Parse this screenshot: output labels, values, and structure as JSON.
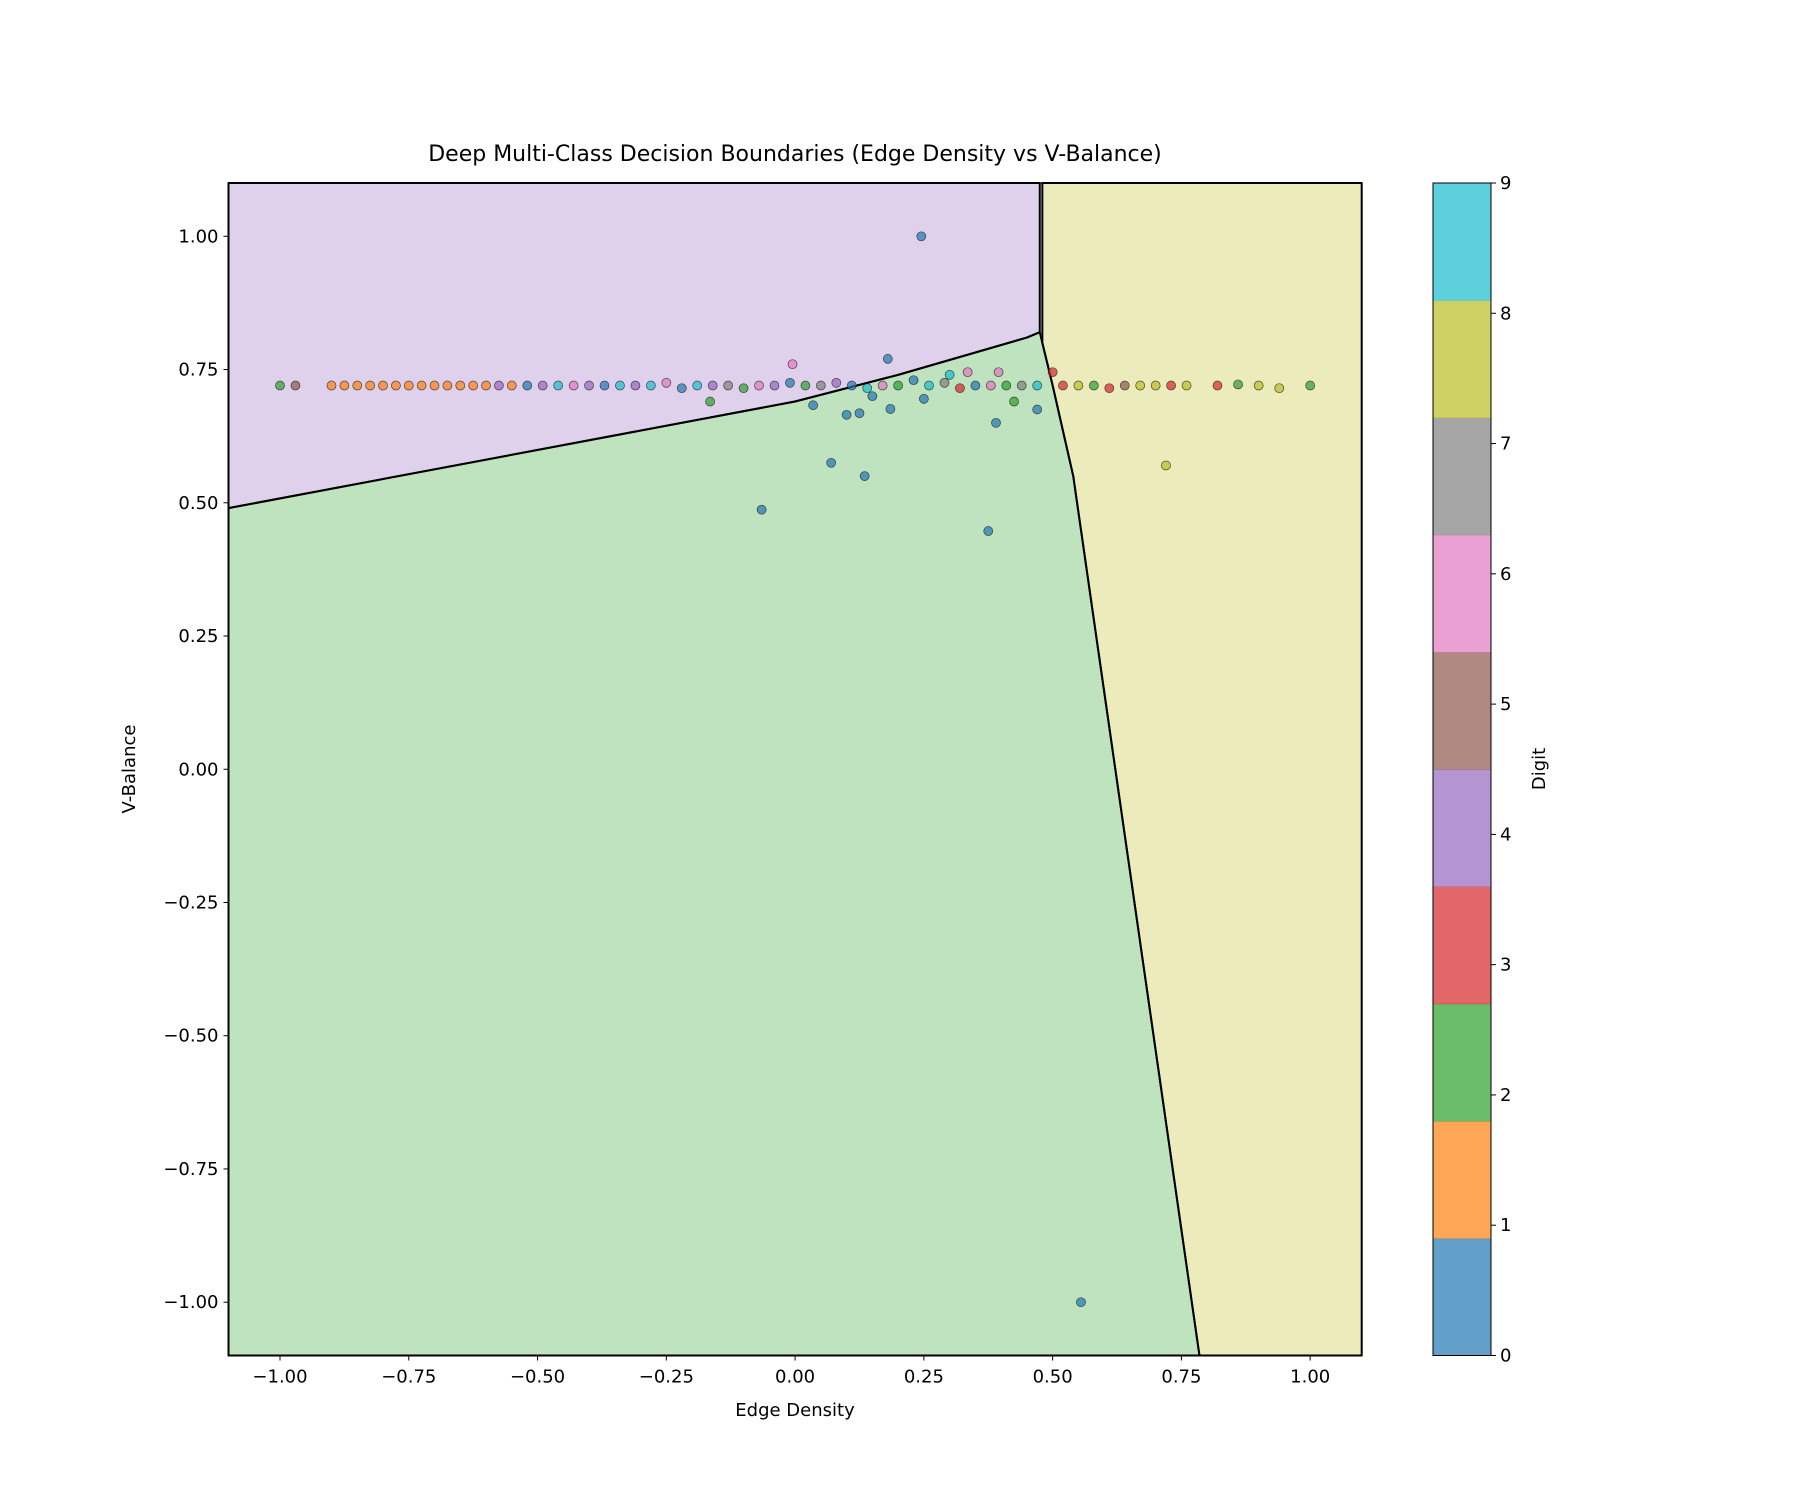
{
  "chart_data": {
    "type": "scatter",
    "title": "Deep Multi-Class Decision Boundaries (Edge Density vs V-Balance)",
    "x_label": "Edge Density",
    "y_label": "V-Balance",
    "colorbar_label": "Digit",
    "xlim": [
      -1.1,
      1.1
    ],
    "ylim": [
      -1.1,
      1.1
    ],
    "xticks": [
      {
        "value": -1,
        "label": "−1.00"
      },
      {
        "value": -0.75,
        "label": "−0.75"
      },
      {
        "value": -0.5,
        "label": "−0.50"
      },
      {
        "value": -0.25,
        "label": "−0.25"
      },
      {
        "value": 0,
        "label": "0.00"
      },
      {
        "value": 0.25,
        "label": "0.25"
      },
      {
        "value": 0.5,
        "label": "0.50"
      },
      {
        "value": 0.75,
        "label": "0.75"
      },
      {
        "value": 1,
        "label": "1.00"
      }
    ],
    "yticks": [
      {
        "value": -1,
        "label": "−1.00"
      },
      {
        "value": -0.75,
        "label": "−0.75"
      },
      {
        "value": -0.5,
        "label": "−0.50"
      },
      {
        "value": -0.25,
        "label": "−0.25"
      },
      {
        "value": 0,
        "label": "0.00"
      },
      {
        "value": 0.25,
        "label": "0.25"
      },
      {
        "value": 0.5,
        "label": "0.50"
      },
      {
        "value": 0.75,
        "label": "0.75"
      },
      {
        "value": 1,
        "label": "1.00"
      }
    ],
    "clim": [
      0,
      9
    ],
    "cticks": [
      0,
      1,
      2,
      3,
      4,
      5,
      6,
      7,
      8,
      9
    ],
    "cmap_colors": [
      "#1f77b4",
      "#ff7f0e",
      "#2ca02c",
      "#d62728",
      "#9467bd",
      "#8c564b",
      "#e377c2",
      "#7f7f7f",
      "#bcbd22",
      "#17becf"
    ],
    "point_alpha": 0.7,
    "region_alpha": 0.3,
    "regions": [
      {
        "class": 4,
        "x": [
          -1.1,
          0.0,
          0.2,
          0.45,
          0.475,
          0.475,
          -1.1
        ],
        "y": [
          0.49,
          0.69,
          0.74,
          0.81,
          0.82,
          1.1,
          1.1
        ]
      },
      {
        "class": 8,
        "x": [
          0.48,
          1.1,
          1.1,
          0.785,
          0.54,
          0.5,
          0.48
        ],
        "y": [
          1.1,
          1.1,
          -1.1,
          -1.1,
          0.55,
          0.72,
          0.8
        ]
      },
      {
        "class": 2,
        "x": [
          -1.1,
          0.0,
          0.2,
          0.45,
          0.475,
          0.48,
          0.5,
          0.54,
          0.785,
          -1.1
        ],
        "y": [
          0.49,
          0.69,
          0.74,
          0.81,
          0.82,
          0.8,
          0.72,
          0.55,
          -1.1,
          -1.1
        ]
      }
    ],
    "x": [
      -1.0,
      -0.97,
      -0.9,
      -0.875,
      -0.85,
      -0.825,
      -0.8,
      -0.775,
      -0.75,
      -0.725,
      -0.7,
      -0.675,
      -0.65,
      -0.625,
      -0.6,
      -0.575,
      -0.55,
      -0.52,
      -0.49,
      -0.46,
      -0.43,
      -0.4,
      -0.37,
      -0.34,
      -0.31,
      -0.28,
      -0.25,
      -0.22,
      -0.19,
      -0.16,
      -0.13,
      -0.1,
      -0.07,
      -0.04,
      -0.01,
      0.02,
      0.05,
      0.08,
      0.11,
      0.14,
      0.17,
      0.2,
      0.23,
      0.26,
      0.29,
      0.32,
      0.35,
      0.38,
      0.41,
      0.44,
      0.47,
      0.52,
      0.55,
      0.58,
      0.61,
      0.64,
      0.67,
      0.7,
      0.73,
      0.76,
      0.82,
      0.86,
      0.9,
      0.94,
      1.0,
      0.245,
      0.07,
      0.135,
      -0.065,
      0.375,
      0.555,
      0.72,
      0.39,
      -0.165,
      0.18,
      -0.005,
      0.425,
      0.47,
      0.1,
      0.125,
      0.035,
      0.185,
      0.335,
      0.395,
      0.5,
      0.25,
      0.3,
      0.15
    ],
    "y": [
      0.72,
      0.72,
      0.72,
      0.72,
      0.72,
      0.72,
      0.72,
      0.72,
      0.72,
      0.72,
      0.72,
      0.72,
      0.72,
      0.72,
      0.72,
      0.72,
      0.72,
      0.72,
      0.72,
      0.72,
      0.72,
      0.72,
      0.72,
      0.72,
      0.72,
      0.72,
      0.725,
      0.715,
      0.72,
      0.72,
      0.72,
      0.715,
      0.72,
      0.72,
      0.725,
      0.72,
      0.72,
      0.725,
      0.72,
      0.715,
      0.72,
      0.72,
      0.73,
      0.72,
      0.725,
      0.715,
      0.72,
      0.72,
      0.72,
      0.72,
      0.72,
      0.72,
      0.72,
      0.72,
      0.715,
      0.72,
      0.72,
      0.72,
      0.72,
      0.72,
      0.72,
      0.722,
      0.72,
      0.715,
      0.72,
      1.0,
      0.575,
      0.55,
      0.487,
      0.447,
      -1.0,
      0.57,
      0.65,
      0.69,
      0.77,
      0.76,
      0.69,
      0.675,
      0.665,
      0.668,
      0.683,
      0.676,
      0.745,
      0.745,
      0.745,
      0.695,
      0.74,
      0.7
    ],
    "labels": [
      2,
      5,
      1,
      1,
      1,
      1,
      1,
      1,
      1,
      1,
      1,
      1,
      1,
      1,
      1,
      4,
      1,
      0,
      4,
      9,
      6,
      4,
      0,
      9,
      4,
      9,
      6,
      0,
      9,
      4,
      7,
      2,
      6,
      4,
      0,
      2,
      7,
      4,
      0,
      9,
      6,
      2,
      0,
      9,
      7,
      3,
      0,
      6,
      2,
      7,
      9,
      3,
      8,
      2,
      3,
      5,
      8,
      8,
      3,
      8,
      3,
      2,
      8,
      8,
      2,
      0,
      0,
      0,
      0,
      0,
      0,
      8,
      0,
      2,
      0,
      6,
      2,
      0,
      0,
      0,
      0,
      0,
      6,
      6,
      3,
      0,
      9,
      0
    ]
  }
}
